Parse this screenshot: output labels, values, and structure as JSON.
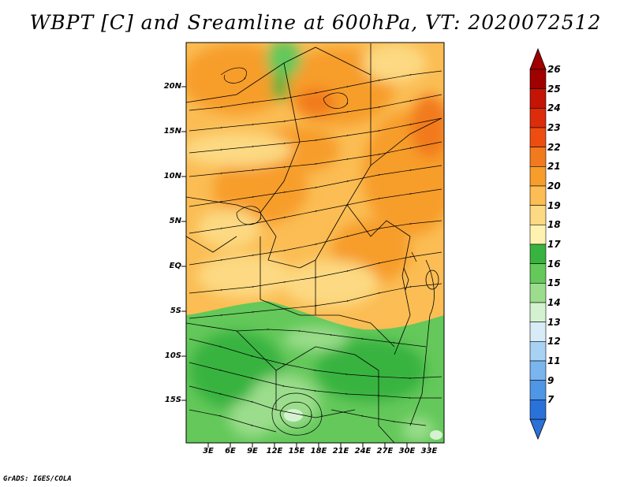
{
  "title": "WBPT [C] and Sreamline at 600hPa, VT: 2020072512",
  "footer": "GrADS: IGES/COLA",
  "lat_labels": [
    "20N",
    "15N",
    "10N",
    "5N",
    "EQ",
    "5S",
    "10S",
    "15S"
  ],
  "lon_labels": [
    "3E",
    "6E",
    "9E",
    "12E",
    "15E",
    "18E",
    "21E",
    "24E",
    "27E",
    "30E",
    "33E"
  ],
  "colorbar": {
    "labels": [
      "26",
      "25",
      "24",
      "23",
      "22",
      "21",
      "20",
      "19",
      "18",
      "17",
      "16",
      "15",
      "14",
      "13",
      "12",
      "11",
      "9",
      "7"
    ],
    "colors": [
      "#a00000",
      "#c41405",
      "#dc2c0b",
      "#ee4d12",
      "#f27a1e",
      "#f79d2c",
      "#fbbd54",
      "#fcd982",
      "#fff2b0",
      "#38b33f",
      "#64c85a",
      "#9bdd8c",
      "#d4f2d0",
      "#d8ecf8",
      "#a8d2f4",
      "#7ab5ee",
      "#4f96e6",
      "#2a72d8"
    ]
  },
  "chart_data": {
    "type": "heatmap",
    "variable": "WBPT [C]",
    "level": "600hPa",
    "valid_time": "2020072512",
    "lon_range": [
      0,
      35
    ],
    "lat_range": [
      -20,
      24
    ],
    "overlay": "streamlines",
    "colorbar_levels": [
      7,
      9,
      11,
      12,
      13,
      14,
      15,
      16,
      17,
      18,
      19,
      20,
      21,
      22,
      23,
      24,
      25,
      26
    ],
    "regions": [
      {
        "area": "northern half (roughly 3S-24N)",
        "wbpt_range": [
          19,
          22
        ]
      },
      {
        "area": "southern half (roughly 20S-5S)",
        "wbpt_range": [
          15,
          18
        ]
      },
      {
        "area": "small pocket near 15E 17S",
        "wbpt_range": [
          14,
          15
        ]
      }
    ]
  }
}
